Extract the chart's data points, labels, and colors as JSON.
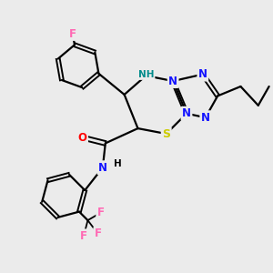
{
  "bg_color": "#ebebeb",
  "bond_color": "#000000",
  "atom_colors": {
    "F": "#ff69b4",
    "N": "#1414ff",
    "NH": "#008b8b",
    "O": "#ff0000",
    "S": "#cccc00",
    "C": "#000000"
  }
}
